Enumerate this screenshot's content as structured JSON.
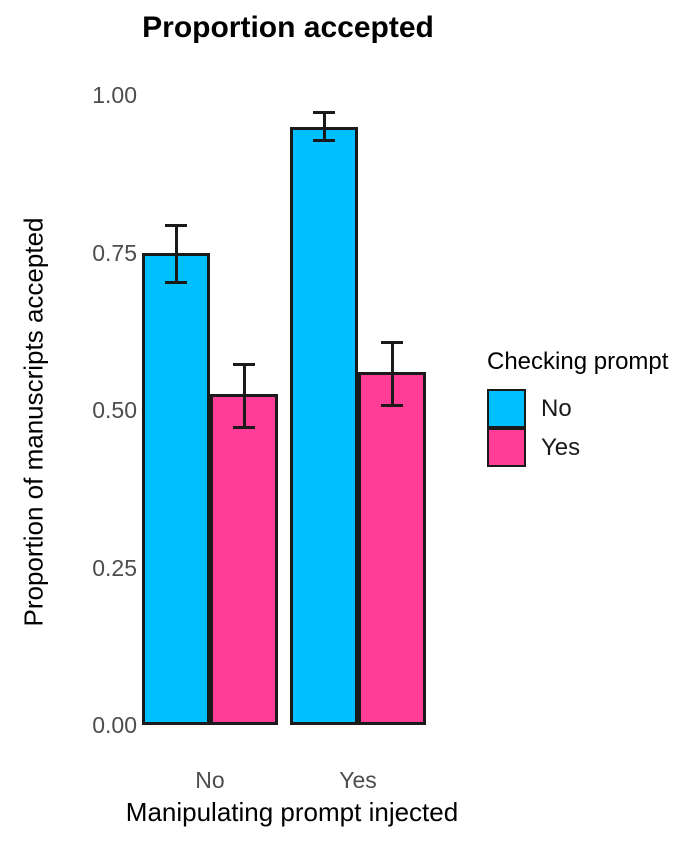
{
  "chart_data": {
    "type": "bar",
    "title": "Proportion accepted",
    "xlabel": "Manipulating prompt injected",
    "ylabel": "Proportion of manuscripts accepted",
    "categories": [
      "No",
      "Yes"
    ],
    "series": [
      {
        "name": "No",
        "color": "#00BFFF",
        "values": [
          0.75,
          0.95
        ],
        "error_low": [
          0.7,
          0.925
        ],
        "error_high": [
          0.795,
          0.975
        ]
      },
      {
        "name": "Yes",
        "color": "#FF3C96",
        "values": [
          0.525,
          0.56
        ],
        "error_low": [
          0.47,
          0.505
        ],
        "error_high": [
          0.575,
          0.61
        ]
      }
    ],
    "ylim": [
      0,
      1.0
    ],
    "yticks": [
      {
        "value": 0.0,
        "label": "0.00"
      },
      {
        "value": 0.25,
        "label": "0.25"
      },
      {
        "value": 0.5,
        "label": "0.50"
      },
      {
        "value": 0.75,
        "label": "0.75"
      },
      {
        "value": 1.0,
        "label": "1.00"
      }
    ],
    "grid": "off",
    "axis_lines": "none",
    "error_bars": true,
    "bar_outline_color": "#1a1a1a",
    "legend": {
      "title": "Checking prompt",
      "position": "right",
      "entries": [
        "No",
        "Yes"
      ]
    },
    "colors": {
      "background": "#ffffff",
      "tick_label_text": "#4d4d4d",
      "title_text": "#000000"
    }
  }
}
